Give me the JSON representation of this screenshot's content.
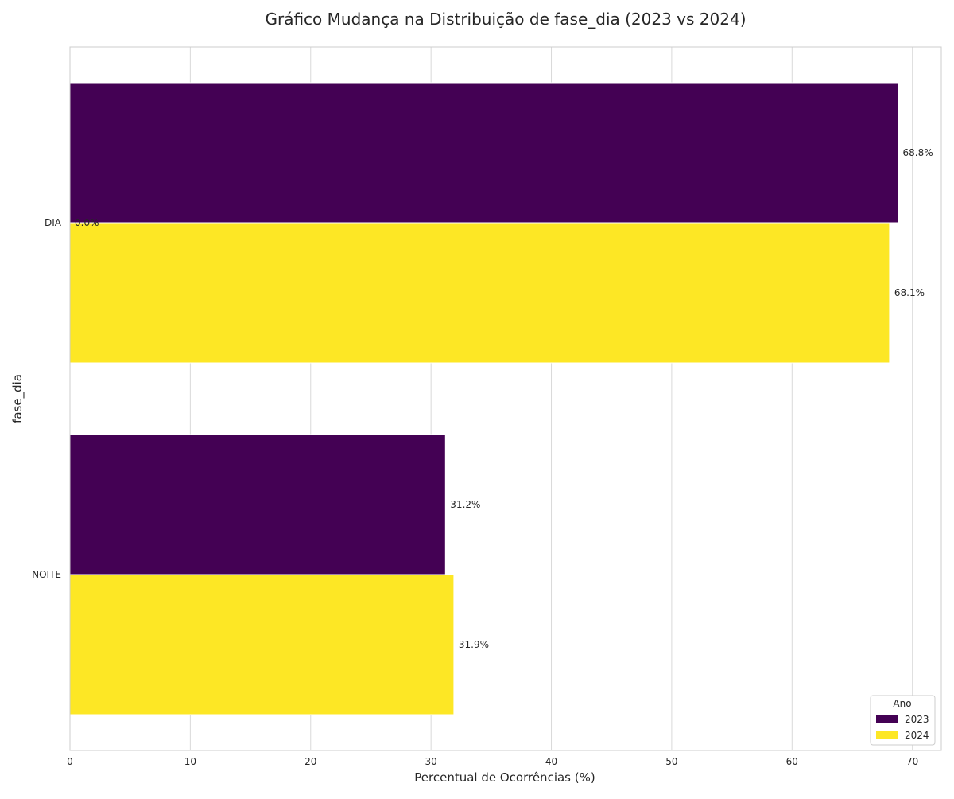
{
  "chart_data": {
    "type": "bar",
    "orientation": "horizontal",
    "title": "Gráfico Mudança na Distribuição de fase_dia (2023 vs 2024)",
    "xlabel": "Percentual de Ocorrências (%)",
    "ylabel": "fase_dia",
    "categories": [
      "DIA",
      "NOITE"
    ],
    "series": [
      {
        "name": "2023",
        "color": "#440154",
        "values": [
          68.8,
          31.2
        ],
        "labels": [
          "68.8%",
          "31.2%"
        ]
      },
      {
        "name": "2024",
        "color": "#fde725",
        "values": [
          68.1,
          31.9
        ],
        "labels": [
          "68.1%",
          "31.9%"
        ]
      }
    ],
    "annotations": [
      {
        "text": "0.0%",
        "category": "DIA",
        "x": 0.0
      }
    ],
    "xlim": [
      0,
      72.4
    ],
    "xticks": [
      "0",
      "10",
      "20",
      "30",
      "40",
      "50",
      "60",
      "70"
    ],
    "grid": true,
    "legend": {
      "title": "Ano",
      "placement": "lower-right"
    }
  }
}
